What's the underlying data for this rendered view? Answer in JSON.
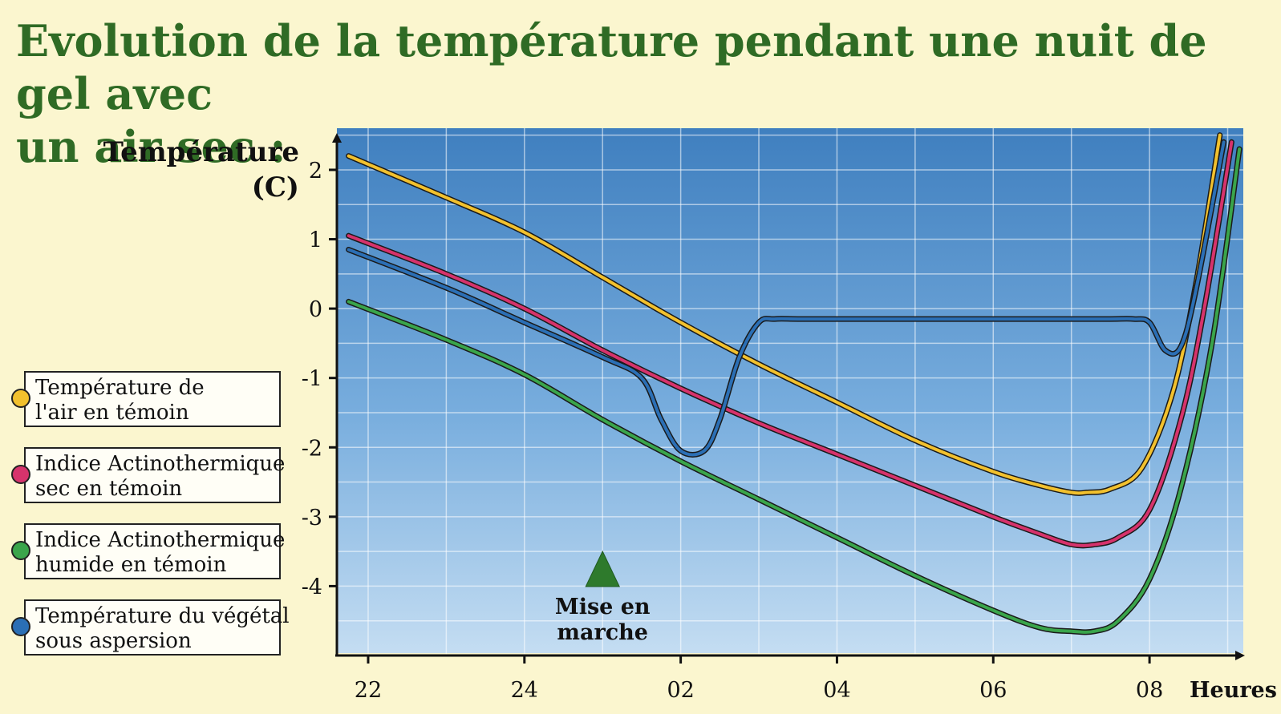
{
  "title_line1": "Evolution de la température pendant une nuit de gel avec",
  "title_line2": "un air sec :",
  "ylabel_line1": "Température",
  "ylabel_line2": "(C)",
  "xlabel": "Heures",
  "annotation": {
    "line1": "Mise en",
    "line2": "marche",
    "x": 25.0,
    "marker": "triangle-marker",
    "color": "#2e7a2c"
  },
  "legend": [
    {
      "line1": "Température de",
      "line2": "l'air en témoin",
      "color": "#f2c12e"
    },
    {
      "line1": "Indice Actinothermique",
      "line2": "sec en témoin",
      "color": "#d6336c"
    },
    {
      "line1": "Indice Actinothermique",
      "line2": "humide en témoin",
      "color": "#3aa54b"
    },
    {
      "line1": "Température du végétal",
      "line2": "sous aspersion",
      "color": "#2b6fb5"
    }
  ],
  "chart_data": {
    "type": "line",
    "title": "Evolution de la température pendant une nuit de gel avec un air sec :",
    "ylabel": "Température (C)",
    "xlabel": "Heures",
    "xlim": [
      21.6,
      33.2
    ],
    "ylim": [
      -5,
      2.6
    ],
    "x_ticks": [
      22,
      24,
      26,
      28,
      30,
      32
    ],
    "x_tick_labels": [
      "22",
      "24",
      "02",
      "04",
      "06",
      "08"
    ],
    "y_ticks": [
      2,
      1,
      0,
      -1,
      -2,
      -3,
      -4
    ],
    "y_tick_labels": [
      "2",
      "1",
      "0",
      "-1",
      "-2",
      "-3",
      "-4"
    ],
    "grid": true,
    "series": [
      {
        "name": "Température de l'air en témoin",
        "color": "#f2c12e",
        "x": [
          21.75,
          23,
          24,
          25,
          26,
          27,
          28,
          29,
          30,
          30.6,
          31.0,
          31.2,
          31.5,
          31.9,
          32.3,
          32.6,
          32.9
        ],
        "y": [
          2.2,
          1.6,
          1.1,
          0.45,
          -0.2,
          -0.8,
          -1.35,
          -1.9,
          -2.35,
          -2.55,
          -2.65,
          -2.65,
          -2.6,
          -2.3,
          -1.2,
          0.4,
          2.5
        ]
      },
      {
        "name": "Indice Actinothermique sec en témoin",
        "color": "#d6336c",
        "x": [
          21.75,
          23,
          24,
          25,
          26,
          27,
          28,
          29,
          30,
          30.6,
          31.0,
          31.3,
          31.6,
          32.0,
          32.4,
          32.7,
          33.05
        ],
        "y": [
          1.05,
          0.5,
          0.0,
          -0.6,
          -1.15,
          -1.65,
          -2.1,
          -2.55,
          -3.0,
          -3.25,
          -3.4,
          -3.4,
          -3.3,
          -2.9,
          -1.6,
          0.0,
          2.4
        ]
      },
      {
        "name": "Indice Actinothermique humide en témoin",
        "color": "#3aa54b",
        "x": [
          21.75,
          23,
          24,
          25,
          26,
          27,
          28,
          29,
          30,
          30.6,
          31.0,
          31.3,
          31.6,
          32.0,
          32.4,
          32.8,
          33.15
        ],
        "y": [
          0.1,
          -0.45,
          -0.95,
          -1.6,
          -2.2,
          -2.75,
          -3.3,
          -3.85,
          -4.35,
          -4.6,
          -4.65,
          -4.65,
          -4.5,
          -3.9,
          -2.6,
          -0.5,
          2.3
        ]
      },
      {
        "name": "Température du végétal sous aspersion",
        "color": "#2b6fb5",
        "x": [
          21.75,
          23,
          24,
          25.0,
          25.5,
          25.75,
          26.0,
          26.3,
          26.5,
          26.75,
          27.0,
          27.2,
          27.5,
          28,
          29,
          30,
          31,
          31.5,
          31.8,
          32.0,
          32.2,
          32.4,
          32.6,
          32.95
        ],
        "y": [
          0.85,
          0.3,
          -0.2,
          -0.7,
          -1.0,
          -1.6,
          -2.05,
          -2.05,
          -1.6,
          -0.7,
          -0.2,
          -0.15,
          -0.15,
          -0.15,
          -0.15,
          -0.15,
          -0.15,
          -0.15,
          -0.15,
          -0.2,
          -0.6,
          -0.55,
          0.3,
          2.4
        ]
      }
    ]
  }
}
